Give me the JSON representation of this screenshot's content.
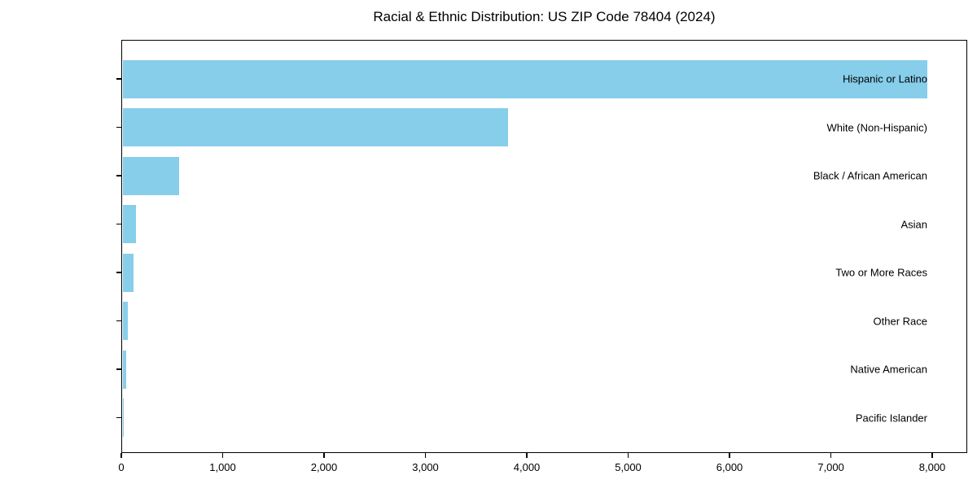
{
  "chart_data": {
    "type": "bar",
    "orientation": "horizontal",
    "title": "Racial & Ethnic Distribution: US ZIP Code 78404 (2024)",
    "categories": [
      "Hispanic or Latino",
      "White (Non-Hispanic)",
      "Black / African American",
      "Asian",
      "Two or More Races",
      "Other Race",
      "Native American",
      "Pacific Islander"
    ],
    "values": [
      7940,
      3800,
      560,
      135,
      110,
      55,
      40,
      5
    ],
    "xlabel": "",
    "ylabel": "",
    "xlim": [
      0,
      8345
    ],
    "xticks": [
      0,
      1000,
      2000,
      3000,
      4000,
      5000,
      6000,
      7000,
      8000
    ],
    "xtick_labels": [
      "0",
      "1,000",
      "2,000",
      "3,000",
      "4,000",
      "5,000",
      "6,000",
      "7,000",
      "8,000"
    ],
    "bar_color": "#87CEEB",
    "axis_color": "#000000",
    "grid": false,
    "legend": null
  }
}
